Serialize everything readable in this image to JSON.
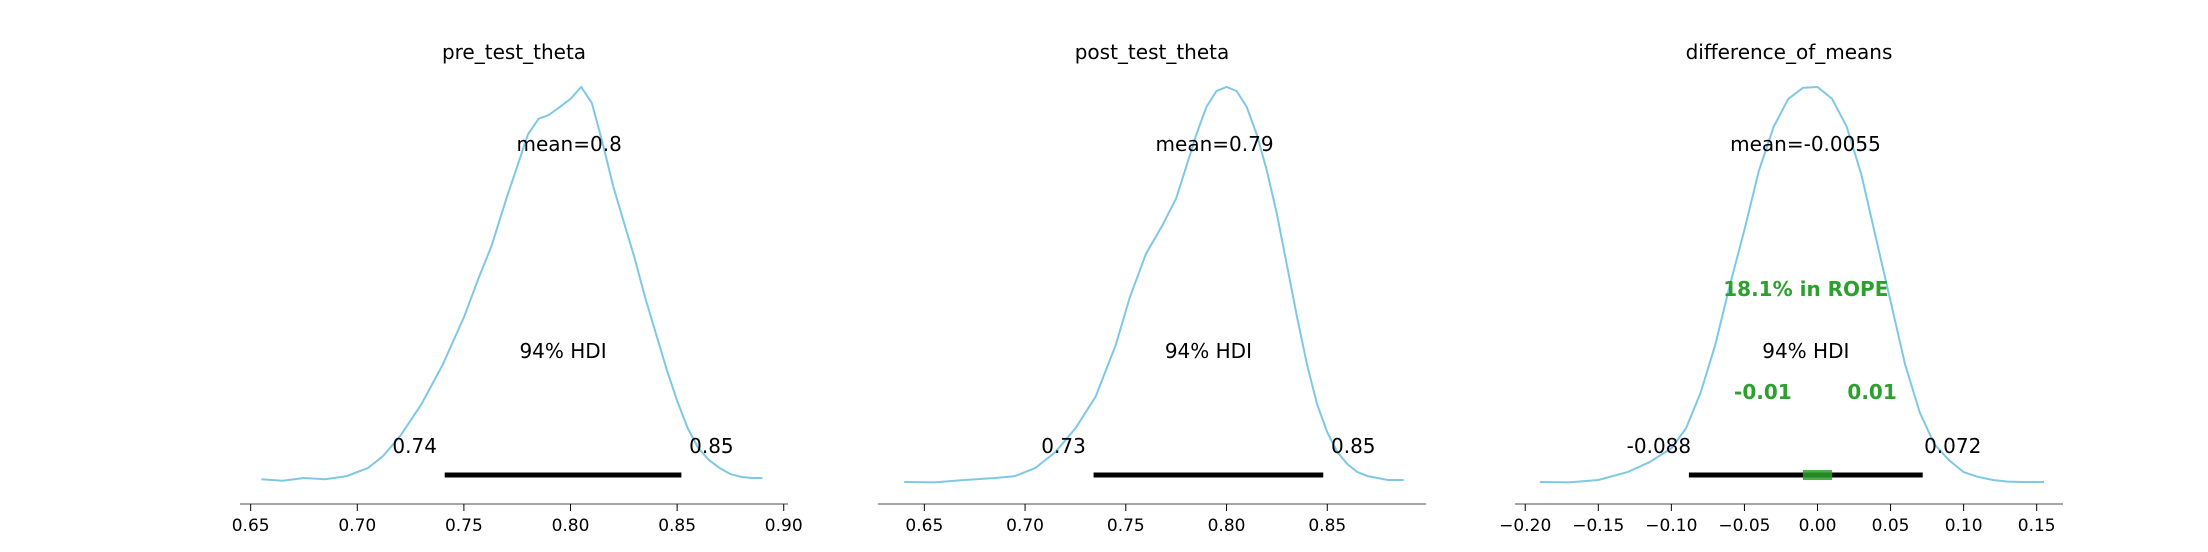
{
  "chart_data": [
    {
      "type": "area",
      "title": "pre_test_theta",
      "mean_label": "mean=0.8",
      "hdi_label": "94% HDI",
      "hdi": [
        0.741,
        0.852
      ],
      "hdi_low_label": "0.74",
      "hdi_high_label": "0.85",
      "xlim": [
        0.645,
        0.902
      ],
      "ticks": [
        0.65,
        0.7,
        0.75,
        0.8,
        0.85,
        0.9
      ],
      "tick_labels": [
        "0.65",
        "0.70",
        "0.75",
        "0.80",
        "0.85",
        "0.90"
      ],
      "x": [
        0.655,
        0.665,
        0.675,
        0.685,
        0.695,
        0.705,
        0.712,
        0.72,
        0.73,
        0.74,
        0.75,
        0.757,
        0.763,
        0.77,
        0.775,
        0.78,
        0.785,
        0.79,
        0.795,
        0.8,
        0.805,
        0.81,
        0.815,
        0.82,
        0.825,
        0.83,
        0.835,
        0.84,
        0.845,
        0.85,
        0.855,
        0.86,
        0.865,
        0.87,
        0.875,
        0.88,
        0.885,
        0.89
      ],
      "density": [
        0.012,
        0.008,
        0.015,
        0.012,
        0.02,
        0.04,
        0.07,
        0.12,
        0.2,
        0.3,
        0.42,
        0.52,
        0.6,
        0.72,
        0.8,
        0.88,
        0.92,
        0.93,
        0.95,
        0.97,
        1.0,
        0.96,
        0.86,
        0.75,
        0.66,
        0.57,
        0.47,
        0.38,
        0.29,
        0.21,
        0.14,
        0.09,
        0.06,
        0.04,
        0.025,
        0.018,
        0.015,
        0.015
      ]
    },
    {
      "type": "area",
      "title": "post_test_theta",
      "mean_label": "mean=0.79",
      "hdi_label": "94% HDI",
      "hdi": [
        0.734,
        0.848
      ],
      "hdi_low_label": "0.73",
      "hdi_high_label": "0.85",
      "xlim": [
        0.627,
        0.899
      ],
      "ticks": [
        0.65,
        0.7,
        0.75,
        0.8,
        0.85
      ],
      "tick_labels": [
        "0.65",
        "0.70",
        "0.75",
        "0.80",
        "0.85"
      ],
      "x": [
        0.64,
        0.655,
        0.67,
        0.685,
        0.695,
        0.705,
        0.715,
        0.725,
        0.735,
        0.745,
        0.752,
        0.76,
        0.768,
        0.775,
        0.78,
        0.785,
        0.79,
        0.795,
        0.8,
        0.805,
        0.81,
        0.815,
        0.82,
        0.825,
        0.83,
        0.835,
        0.84,
        0.845,
        0.85,
        0.855,
        0.86,
        0.865,
        0.87,
        0.875,
        0.88,
        0.888
      ],
      "density": [
        0.005,
        0.004,
        0.01,
        0.015,
        0.02,
        0.04,
        0.08,
        0.14,
        0.22,
        0.35,
        0.47,
        0.58,
        0.65,
        0.72,
        0.8,
        0.88,
        0.95,
        0.99,
        1.0,
        0.99,
        0.95,
        0.88,
        0.79,
        0.68,
        0.55,
        0.42,
        0.3,
        0.2,
        0.13,
        0.08,
        0.05,
        0.03,
        0.02,
        0.015,
        0.01,
        0.01
      ]
    },
    {
      "type": "area",
      "title": "difference_of_means",
      "mean_label": "mean=-0.0055",
      "hdi_label": "94% HDI",
      "hdi": [
        -0.088,
        0.072
      ],
      "hdi_low_label": "-0.088",
      "hdi_high_label": "0.072",
      "rope": [
        -0.01,
        0.01
      ],
      "rope_label": "18.1% in ROPE",
      "rope_low_label": "-0.01",
      "rope_high_label": "0.01",
      "xlim": [
        -0.207,
        0.168
      ],
      "ticks": [
        -0.2,
        -0.15,
        -0.1,
        -0.05,
        0.0,
        0.05,
        0.1,
        0.15
      ],
      "tick_labels": [
        "−0.20",
        "−0.15",
        "−0.10",
        "−0.05",
        "0.00",
        "0.05",
        "0.10",
        "0.15"
      ],
      "x": [
        -0.19,
        -0.17,
        -0.15,
        -0.13,
        -0.115,
        -0.1,
        -0.09,
        -0.08,
        -0.07,
        -0.06,
        -0.05,
        -0.04,
        -0.03,
        -0.02,
        -0.01,
        0.0,
        0.01,
        0.02,
        0.03,
        0.04,
        0.05,
        0.06,
        0.07,
        0.08,
        0.09,
        0.1,
        0.11,
        0.12,
        0.13,
        0.14,
        0.155
      ],
      "density": [
        0.005,
        0.004,
        0.01,
        0.03,
        0.055,
        0.09,
        0.14,
        0.23,
        0.35,
        0.5,
        0.64,
        0.79,
        0.9,
        0.97,
        0.998,
        1.0,
        0.97,
        0.9,
        0.78,
        0.62,
        0.46,
        0.3,
        0.18,
        0.1,
        0.06,
        0.03,
        0.018,
        0.01,
        0.006,
        0.005,
        0.005
      ]
    }
  ],
  "colors": {
    "kde": "#7ec8e6",
    "hdi": "#000000",
    "rope": "#2ca02c",
    "axis": "#888888"
  }
}
